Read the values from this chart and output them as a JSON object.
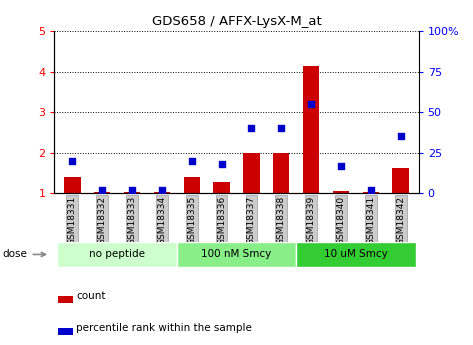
{
  "title": "GDS658 / AFFX-LysX-M_at",
  "samples": [
    "GSM18331",
    "GSM18332",
    "GSM18333",
    "GSM18334",
    "GSM18335",
    "GSM18336",
    "GSM18337",
    "GSM18338",
    "GSM18339",
    "GSM18340",
    "GSM18341",
    "GSM18342"
  ],
  "count": [
    1.4,
    1.02,
    1.02,
    1.02,
    1.4,
    1.28,
    2.0,
    2.0,
    4.15,
    1.05,
    1.02,
    1.62
  ],
  "percentile": [
    20,
    2,
    2,
    2,
    20,
    18,
    40,
    40,
    55,
    17,
    2,
    35
  ],
  "ylim_left": [
    1,
    5
  ],
  "ylim_right": [
    0,
    100
  ],
  "yticks_left": [
    1,
    2,
    3,
    4,
    5
  ],
  "yticks_right": [
    0,
    25,
    50,
    75,
    100
  ],
  "ytick_labels_right": [
    "0",
    "25",
    "50",
    "75",
    "100%"
  ],
  "bar_color": "#cc0000",
  "square_color": "#0000cc",
  "groups": [
    {
      "label": "no peptide",
      "start": 0,
      "end": 4,
      "color": "#ccffcc"
    },
    {
      "label": "100 nM Smcy",
      "start": 4,
      "end": 8,
      "color": "#88ee88"
    },
    {
      "label": "10 uM Smcy",
      "start": 8,
      "end": 12,
      "color": "#33cc33"
    }
  ],
  "dose_label": "dose",
  "legend_count": "count",
  "legend_percentile": "percentile rank within the sample",
  "bar_width": 0.55,
  "grid_color": "#000000",
  "bg_color": "#ffffff",
  "plot_bg": "#ffffff",
  "tick_bg": "#cccccc"
}
